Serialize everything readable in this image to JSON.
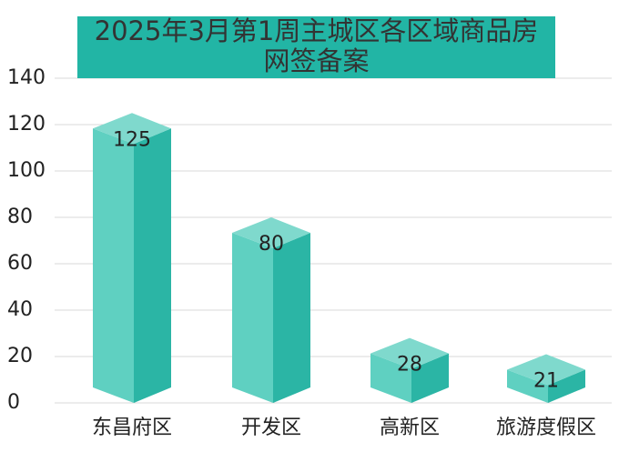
{
  "chart_data": {
    "type": "bar3d",
    "title": "2025年3月第1周主城区各区域商品房网签备案",
    "categories": [
      "东昌府区",
      "开发区",
      "高新区",
      "旅游度假区"
    ],
    "values": [
      125,
      80,
      28,
      21
    ],
    "color": "#2bb5a5",
    "ylim": [
      0,
      140
    ],
    "yticks": [
      0,
      20,
      40,
      60,
      80,
      100,
      120,
      140
    ],
    "grid": true
  }
}
